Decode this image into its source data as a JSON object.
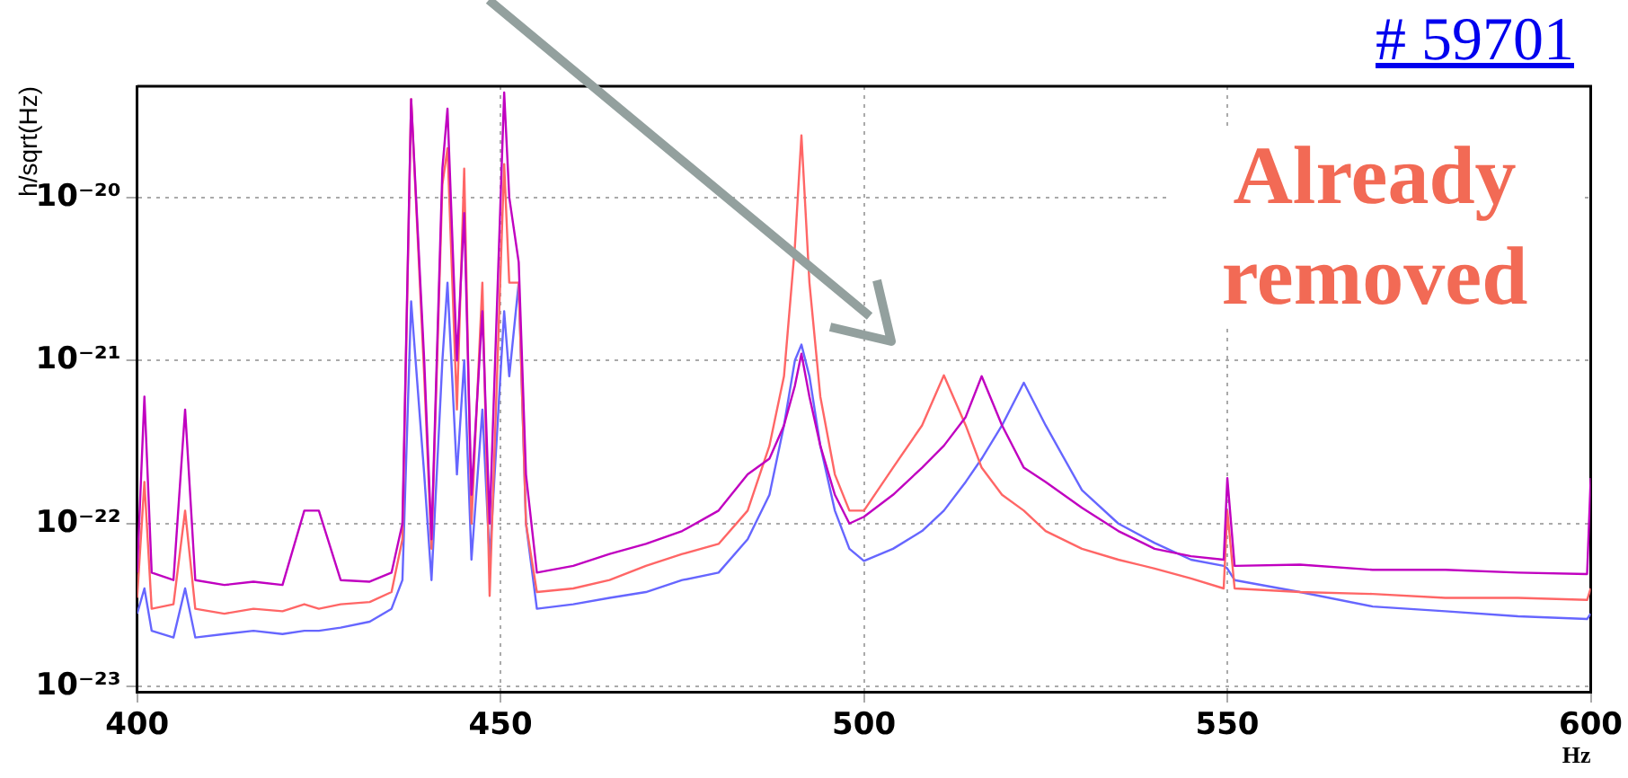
{
  "chart_data": {
    "type": "line",
    "xlabel": "Hz",
    "ylabel": "h/sqrt(Hz)",
    "log": "y",
    "grid": true,
    "legend": false,
    "marker": "none",
    "line_style": "solid",
    "annotations": [
      "# 59701",
      "Already removed"
    ],
    "xlim": [
      400,
      600
    ],
    "xticks": [
      400,
      450,
      500,
      550,
      600
    ],
    "ylim": [
      9.3e-24,
      4.8e-20
    ],
    "yticks": [
      {
        "value": 1e-23,
        "label": "10⁻²³"
      },
      {
        "value": 1e-22,
        "label": "10⁻²²"
      },
      {
        "value": 1e-21,
        "label": "10⁻²¹"
      },
      {
        "value": 1e-20,
        "label": "10⁻²⁰"
      }
    ],
    "x": [
      400,
      401,
      402,
      405,
      406.6,
      408,
      412,
      416,
      420,
      423,
      425,
      428,
      432,
      435,
      436.5,
      437.7,
      439.5,
      440.5,
      442,
      442.7,
      444,
      445,
      446,
      447.5,
      448.5,
      450.5,
      451.2,
      452.5,
      453.5,
      455,
      460,
      465,
      470,
      475,
      480,
      484,
      487,
      489,
      490.5,
      491.4,
      492.5,
      494,
      496,
      498,
      500,
      504,
      508,
      511,
      514,
      516.2,
      519,
      522,
      525,
      530,
      535,
      540,
      545,
      549.5,
      550,
      551,
      560,
      570,
      580,
      590,
      599.5,
      600
    ],
    "series": [
      {
        "color": "#c000c0",
        "values": [
          5e-23,
          6e-22,
          5e-23,
          4.5e-23,
          5e-22,
          4.5e-23,
          4.2e-23,
          4.4e-23,
          4.2e-23,
          1.2e-22,
          1.2e-22,
          4.5e-23,
          4.4e-23,
          5e-23,
          1e-22,
          4e-20,
          1e-21,
          8e-23,
          1.5e-20,
          3.5e-20,
          1e-21,
          8e-21,
          1.5e-22,
          2e-21,
          1e-22,
          4.4e-20,
          1e-20,
          4e-21,
          2e-22,
          5e-23,
          5.5e-23,
          6.5e-23,
          7.5e-23,
          9e-23,
          1.2e-22,
          2e-22,
          2.5e-22,
          4e-22,
          7e-22,
          1.1e-21,
          6e-22,
          3e-22,
          1.5e-22,
          1e-22,
          1.1e-22,
          1.5e-22,
          2.2e-22,
          3e-22,
          4.5e-22,
          8e-22,
          4e-22,
          2.2e-22,
          1.8e-22,
          1.25e-22,
          9e-23,
          7e-23,
          6.3e-23,
          6e-23,
          1.9e-22,
          5.5e-23,
          5.6e-23,
          5.2e-23,
          5.2e-23,
          5e-23,
          4.9e-23,
          1.9e-22
        ]
      },
      {
        "color": "#ff6666",
        "values": [
          3.5e-23,
          1.8e-22,
          3e-23,
          3.2e-23,
          1.2e-22,
          3e-23,
          2.8e-23,
          3e-23,
          2.9e-23,
          3.2e-23,
          3e-23,
          3.2e-23,
          3.3e-23,
          3.8e-23,
          8e-23,
          4e-20,
          8e-22,
          7e-23,
          1.2e-20,
          2e-20,
          5e-22,
          1.5e-20,
          1e-22,
          3e-21,
          3.6e-23,
          1.6e-20,
          3e-21,
          3e-21,
          1e-22,
          3.8e-23,
          4e-23,
          4.5e-23,
          5.5e-23,
          6.5e-23,
          7.5e-23,
          1.2e-22,
          3e-22,
          8e-22,
          5e-21,
          2.4e-20,
          3e-21,
          6e-22,
          2e-22,
          1.2e-22,
          1.2e-22,
          2.2e-22,
          4e-22,
          8.1e-22,
          4e-22,
          2.2e-22,
          1.5e-22,
          1.2e-22,
          9e-23,
          7e-23,
          6e-23,
          5.3e-23,
          4.6e-23,
          4e-23,
          1.2e-22,
          4e-23,
          3.8e-23,
          3.7e-23,
          3.5e-23,
          3.5e-23,
          3.4e-23,
          4e-23
        ]
      },
      {
        "color": "#6666ff",
        "values": [
          2.8e-23,
          4e-23,
          2.2e-23,
          2e-23,
          4e-23,
          2e-23,
          2.1e-23,
          2.2e-23,
          2.1e-23,
          2.2e-23,
          2.2e-23,
          2.3e-23,
          2.5e-23,
          3e-23,
          4.5e-23,
          2.3e-21,
          2e-22,
          4.5e-23,
          1e-21,
          3e-21,
          2e-22,
          1e-21,
          6e-23,
          5e-22,
          6e-23,
          2e-21,
          8e-22,
          3e-21,
          1e-22,
          3e-23,
          3.2e-23,
          3.5e-23,
          3.8e-23,
          4.5e-23,
          5e-23,
          8e-23,
          1.5e-22,
          4e-22,
          1e-21,
          1.25e-21,
          8e-22,
          3e-22,
          1.2e-22,
          7e-23,
          5.9e-23,
          7e-23,
          9e-23,
          1.2e-22,
          1.8e-22,
          2.5e-22,
          4e-22,
          7.3e-22,
          4e-22,
          1.6e-22,
          1e-22,
          7.6e-23,
          6e-23,
          5.5e-23,
          5.3e-23,
          4.5e-23,
          3.8e-23,
          3.1e-23,
          2.9e-23,
          2.7e-23,
          2.6e-23,
          2.8e-23
        ]
      }
    ]
  }
}
